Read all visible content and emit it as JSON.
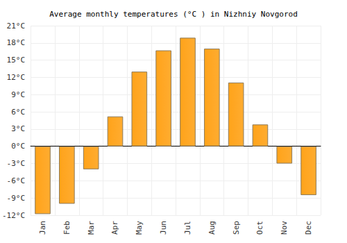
{
  "chart_data": {
    "type": "bar",
    "title": "Average monthly temperatures (°C ) in Nizhniy Novgorod",
    "categories": [
      "Jan",
      "Feb",
      "Mar",
      "Apr",
      "May",
      "Jun",
      "Jul",
      "Aug",
      "Sep",
      "Oct",
      "Nov",
      "Dec"
    ],
    "values": [
      -11.8,
      -10,
      -4,
      5.2,
      13,
      16.7,
      18.9,
      17,
      11.1,
      3.8,
      -3,
      -8.5
    ],
    "color": "#ffa31a",
    "ylim": [
      -12,
      21
    ],
    "yticks": [
      {
        "value": -12,
        "label": "-12°C"
      },
      {
        "value": -9,
        "label": "-9°C"
      },
      {
        "value": -6,
        "label": "-6°C"
      },
      {
        "value": -3,
        "label": "-3°C"
      },
      {
        "value": 0,
        "label": "0°C"
      },
      {
        "value": 3,
        "label": "3°C"
      },
      {
        "value": 6,
        "label": "6°C"
      },
      {
        "value": 9,
        "label": "9°C"
      },
      {
        "value": 12,
        "label": "12°C"
      },
      {
        "value": 15,
        "label": "15°C"
      },
      {
        "value": 18,
        "label": "18°C"
      },
      {
        "value": 21,
        "label": "21°C"
      }
    ],
    "grid": true
  }
}
